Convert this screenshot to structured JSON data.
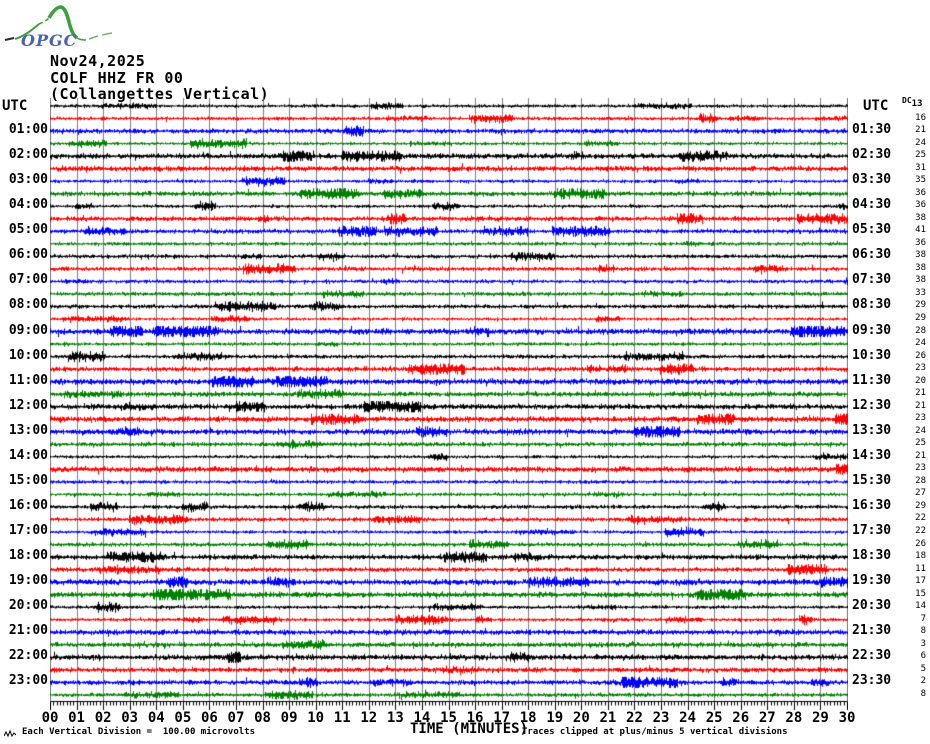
{
  "logo": {
    "text": "OPGC"
  },
  "header": {
    "date": "Nov24,2025",
    "station": "COLF HHZ FR 00",
    "subtitle": "(Collangettes Vertical)"
  },
  "axis_headers": {
    "left_utc": "UTC",
    "right_utc": "UTC",
    "dc_label": "DC"
  },
  "x_axis": {
    "title": "TIME (MINUTES)",
    "labels": [
      "00",
      "01",
      "02",
      "03",
      "04",
      "05",
      "06",
      "07",
      "08",
      "09",
      "10",
      "11",
      "12",
      "13",
      "14",
      "15",
      "16",
      "17",
      "18",
      "19",
      "20",
      "21",
      "22",
      "23",
      "24",
      "25",
      "26",
      "27",
      "28",
      "29",
      "30"
    ]
  },
  "footer": {
    "division_note": "Each Vertical Division =  100.00 microvolts",
    "clip_note": "Traces clipped at plus/minus 5 vertical divisions"
  },
  "colors": {
    "black": "#000000",
    "red": "#ff0000",
    "blue": "#0000ff",
    "green": "#008000",
    "grid": "#7d7d7d",
    "logo_green": "#3f9e3f",
    "logo_blue": "#4a63b0"
  },
  "rows": [
    {
      "start": "00:00",
      "end": "00:30",
      "left_label": "",
      "right_label": "",
      "color": "black",
      "dc": 13
    },
    {
      "start": "00:30",
      "end": "01:00",
      "left_label": "",
      "right_label": "",
      "color": "red",
      "dc": 16
    },
    {
      "start": "01:00",
      "end": "01:30",
      "left_label": "01:00",
      "right_label": "01:30",
      "color": "blue",
      "dc": 21
    },
    {
      "start": "01:30",
      "end": "02:00",
      "left_label": "",
      "right_label": "",
      "color": "green",
      "dc": 24
    },
    {
      "start": "02:00",
      "end": "02:30",
      "left_label": "02:00",
      "right_label": "02:30",
      "color": "black",
      "dc": 25
    },
    {
      "start": "02:30",
      "end": "03:00",
      "left_label": "",
      "right_label": "",
      "color": "red",
      "dc": 31
    },
    {
      "start": "03:00",
      "end": "03:30",
      "left_label": "03:00",
      "right_label": "03:30",
      "color": "blue",
      "dc": 35
    },
    {
      "start": "03:30",
      "end": "04:00",
      "left_label": "",
      "right_label": "",
      "color": "green",
      "dc": 36
    },
    {
      "start": "04:00",
      "end": "04:30",
      "left_label": "04:00",
      "right_label": "04:30",
      "color": "black",
      "dc": 36
    },
    {
      "start": "04:30",
      "end": "05:00",
      "left_label": "",
      "right_label": "",
      "color": "red",
      "dc": 38
    },
    {
      "start": "05:00",
      "end": "05:30",
      "left_label": "05:00",
      "right_label": "05:30",
      "color": "blue",
      "dc": 41
    },
    {
      "start": "05:30",
      "end": "06:00",
      "left_label": "",
      "right_label": "",
      "color": "green",
      "dc": 36
    },
    {
      "start": "06:00",
      "end": "06:30",
      "left_label": "06:00",
      "right_label": "06:30",
      "color": "black",
      "dc": 38
    },
    {
      "start": "06:30",
      "end": "07:00",
      "left_label": "",
      "right_label": "",
      "color": "red",
      "dc": 38
    },
    {
      "start": "07:00",
      "end": "07:30",
      "left_label": "07:00",
      "right_label": "07:30",
      "color": "blue",
      "dc": 38
    },
    {
      "start": "07:30",
      "end": "08:00",
      "left_label": "",
      "right_label": "",
      "color": "green",
      "dc": 33
    },
    {
      "start": "08:00",
      "end": "08:30",
      "left_label": "08:00",
      "right_label": "08:30",
      "color": "black",
      "dc": 29
    },
    {
      "start": "08:30",
      "end": "09:00",
      "left_label": "",
      "right_label": "",
      "color": "red",
      "dc": 29
    },
    {
      "start": "09:00",
      "end": "09:30",
      "left_label": "09:00",
      "right_label": "09:30",
      "color": "blue",
      "dc": 28
    },
    {
      "start": "09:30",
      "end": "10:00",
      "left_label": "",
      "right_label": "",
      "color": "green",
      "dc": 24
    },
    {
      "start": "10:00",
      "end": "10:30",
      "left_label": "10:00",
      "right_label": "10:30",
      "color": "black",
      "dc": 26
    },
    {
      "start": "10:30",
      "end": "11:00",
      "left_label": "",
      "right_label": "",
      "color": "red",
      "dc": 23
    },
    {
      "start": "11:00",
      "end": "11:30",
      "left_label": "11:00",
      "right_label": "11:30",
      "color": "blue",
      "dc": 20
    },
    {
      "start": "11:30",
      "end": "12:00",
      "left_label": "",
      "right_label": "",
      "color": "green",
      "dc": 21
    },
    {
      "start": "12:00",
      "end": "12:30",
      "left_label": "12:00",
      "right_label": "12:30",
      "color": "black",
      "dc": 21
    },
    {
      "start": "12:30",
      "end": "13:00",
      "left_label": "",
      "right_label": "",
      "color": "red",
      "dc": 23
    },
    {
      "start": "13:00",
      "end": "13:30",
      "left_label": "13:00",
      "right_label": "13:30",
      "color": "blue",
      "dc": 24
    },
    {
      "start": "13:30",
      "end": "14:00",
      "left_label": "",
      "right_label": "",
      "color": "green",
      "dc": 25
    },
    {
      "start": "14:00",
      "end": "14:30",
      "left_label": "14:00",
      "right_label": "14:30",
      "color": "black",
      "dc": 21
    },
    {
      "start": "14:30",
      "end": "15:00",
      "left_label": "",
      "right_label": "",
      "color": "red",
      "dc": 23
    },
    {
      "start": "15:00",
      "end": "15:30",
      "left_label": "15:00",
      "right_label": "15:30",
      "color": "blue",
      "dc": 28
    },
    {
      "start": "15:30",
      "end": "16:00",
      "left_label": "",
      "right_label": "",
      "color": "green",
      "dc": 27
    },
    {
      "start": "16:00",
      "end": "16:30",
      "left_label": "16:00",
      "right_label": "16:30",
      "color": "black",
      "dc": 29
    },
    {
      "start": "16:30",
      "end": "17:00",
      "left_label": "",
      "right_label": "",
      "color": "red",
      "dc": 22
    },
    {
      "start": "17:00",
      "end": "17:30",
      "left_label": "17:00",
      "right_label": "17:30",
      "color": "blue",
      "dc": 22
    },
    {
      "start": "17:30",
      "end": "18:00",
      "left_label": "",
      "right_label": "",
      "color": "green",
      "dc": 26
    },
    {
      "start": "18:00",
      "end": "18:30",
      "left_label": "18:00",
      "right_label": "18:30",
      "color": "black",
      "dc": 18
    },
    {
      "start": "18:30",
      "end": "19:00",
      "left_label": "",
      "right_label": "",
      "color": "red",
      "dc": 11
    },
    {
      "start": "19:00",
      "end": "19:30",
      "left_label": "19:00",
      "right_label": "19:30",
      "color": "blue",
      "dc": 17
    },
    {
      "start": "19:30",
      "end": "20:00",
      "left_label": "",
      "right_label": "",
      "color": "green",
      "dc": 15
    },
    {
      "start": "20:00",
      "end": "20:30",
      "left_label": "20:00",
      "right_label": "20:30",
      "color": "black",
      "dc": 14
    },
    {
      "start": "20:30",
      "end": "21:00",
      "left_label": "",
      "right_label": "",
      "color": "red",
      "dc": 7
    },
    {
      "start": "21:00",
      "end": "21:30",
      "left_label": "21:00",
      "right_label": "21:30",
      "color": "blue",
      "dc": 8
    },
    {
      "start": "21:30",
      "end": "22:00",
      "left_label": "",
      "right_label": "",
      "color": "green",
      "dc": 3
    },
    {
      "start": "22:00",
      "end": "22:30",
      "left_label": "22:00",
      "right_label": "22:30",
      "color": "black",
      "dc": 6
    },
    {
      "start": "22:30",
      "end": "23:00",
      "left_label": "",
      "right_label": "",
      "color": "red",
      "dc": 5
    },
    {
      "start": "23:00",
      "end": "23:30",
      "left_label": "23:00",
      "right_label": "23:30",
      "color": "blue",
      "dc": 2
    },
    {
      "start": "23:30",
      "end": "24:00",
      "left_label": "",
      "right_label": "",
      "color": "green",
      "dc": 8
    }
  ],
  "chart_data": {
    "type": "line",
    "subtype": "helicorder-seismogram",
    "title": "COLF HHZ FR 00 (Collangettes Vertical) — Nov24,2025",
    "xlabel": "TIME (MINUTES)",
    "x_range": [
      0,
      30
    ],
    "minutes_per_line": 30,
    "lines": 48,
    "vertical_division_microvolts": 100.0,
    "clip_limit_divisions": 5,
    "trace_color_cycle": [
      "black",
      "red",
      "blue",
      "green"
    ],
    "utc_line_start_times": [
      "00:00",
      "00:30",
      "01:00",
      "01:30",
      "02:00",
      "02:30",
      "03:00",
      "03:30",
      "04:00",
      "04:30",
      "05:00",
      "05:30",
      "06:00",
      "06:30",
      "07:00",
      "07:30",
      "08:00",
      "08:30",
      "09:00",
      "09:30",
      "10:00",
      "10:30",
      "11:00",
      "11:30",
      "12:00",
      "12:30",
      "13:00",
      "13:30",
      "14:00",
      "14:30",
      "15:00",
      "15:30",
      "16:00",
      "16:30",
      "17:00",
      "17:30",
      "18:00",
      "18:30",
      "19:00",
      "19:30",
      "20:00",
      "20:30",
      "21:00",
      "21:30",
      "22:00",
      "22:30",
      "23:00",
      "23:30"
    ],
    "dc_offsets": [
      13,
      16,
      21,
      24,
      25,
      31,
      35,
      36,
      36,
      38,
      41,
      36,
      38,
      38,
      38,
      33,
      29,
      29,
      28,
      24,
      26,
      23,
      20,
      21,
      21,
      23,
      24,
      25,
      21,
      23,
      28,
      27,
      29,
      22,
      22,
      26,
      18,
      11,
      17,
      15,
      14,
      7,
      8,
      3,
      6,
      5,
      2,
      8
    ],
    "description": "24 hours of continuous microseismic background noise; all 48 half-hour traces show low-amplitude noise within the clipping limits, no large events.",
    "grid": "vertical gray line each minute",
    "legend_position": "none"
  }
}
